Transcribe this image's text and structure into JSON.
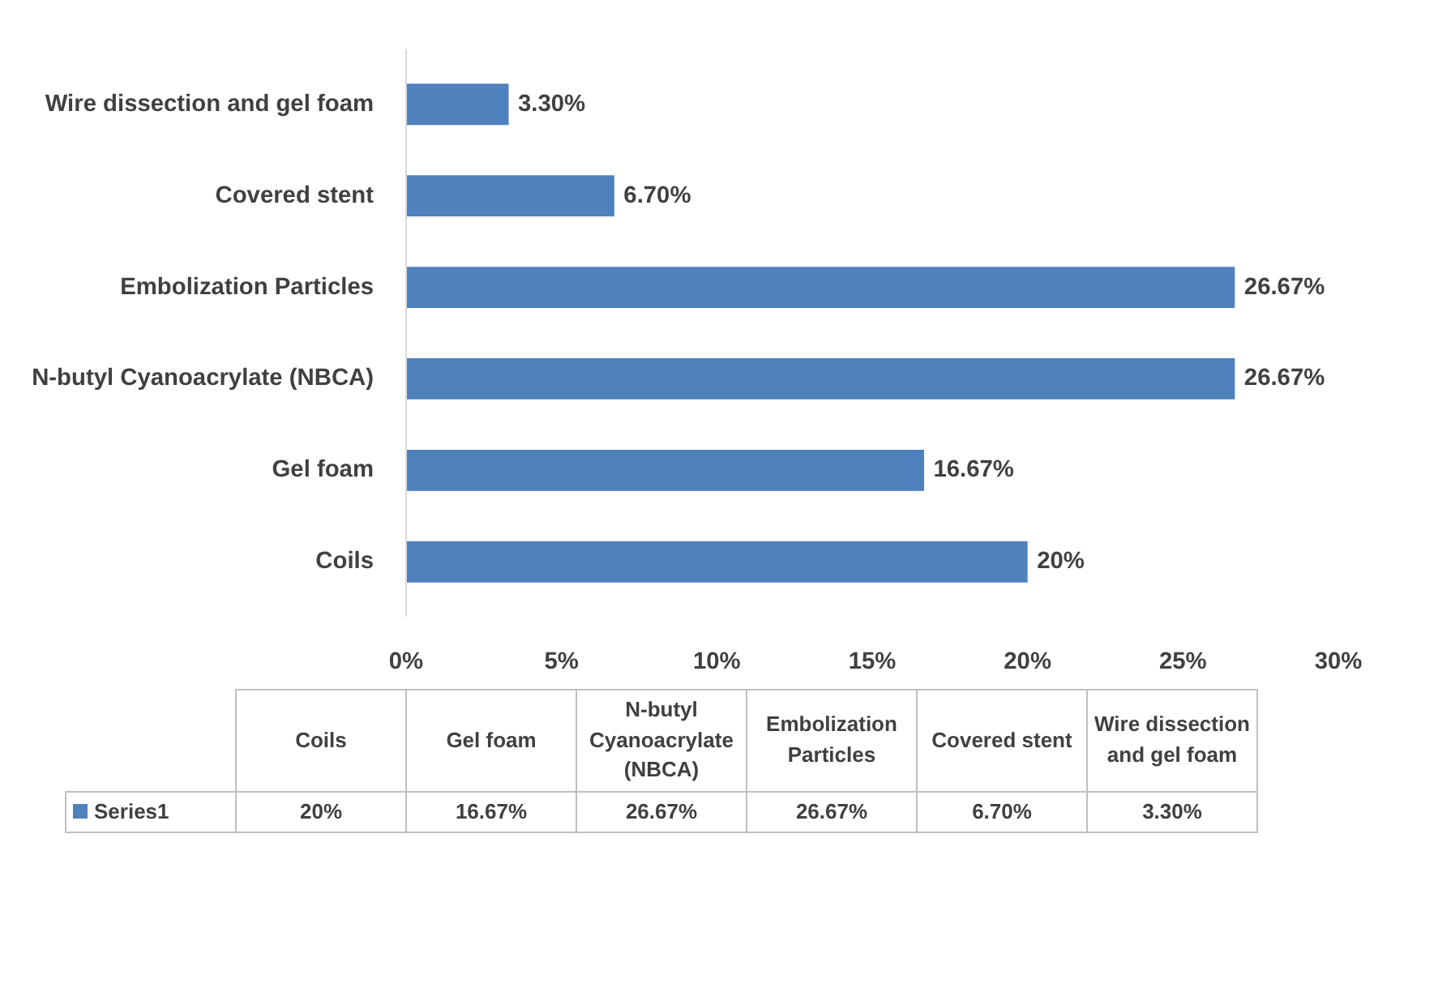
{
  "chart_data": {
    "type": "bar",
    "orientation": "horizontal",
    "categories": [
      "Wire dissection and gel foam",
      "Covered stent",
      "Embolization Particles",
      "N-butyl Cyanoacrylate (NBCA)",
      "Gel foam",
      "Coils"
    ],
    "series": [
      {
        "name": "Series1",
        "color": "#4f81bd",
        "values": [
          3.3,
          6.7,
          26.67,
          26.67,
          16.67,
          20
        ],
        "value_labels": [
          "3.30%",
          "6.70%",
          "26.67%",
          "26.67%",
          "16.67%",
          "20%"
        ]
      }
    ],
    "xlim": [
      0,
      30
    ],
    "xticks": [
      {
        "value": 0,
        "label": "0%"
      },
      {
        "value": 5,
        "label": "5%"
      },
      {
        "value": 10,
        "label": "10%"
      },
      {
        "value": 15,
        "label": "15%"
      },
      {
        "value": 20,
        "label": "20%"
      },
      {
        "value": 25,
        "label": "25%"
      },
      {
        "value": 30,
        "label": "30%"
      }
    ],
    "grid": false
  }
}
